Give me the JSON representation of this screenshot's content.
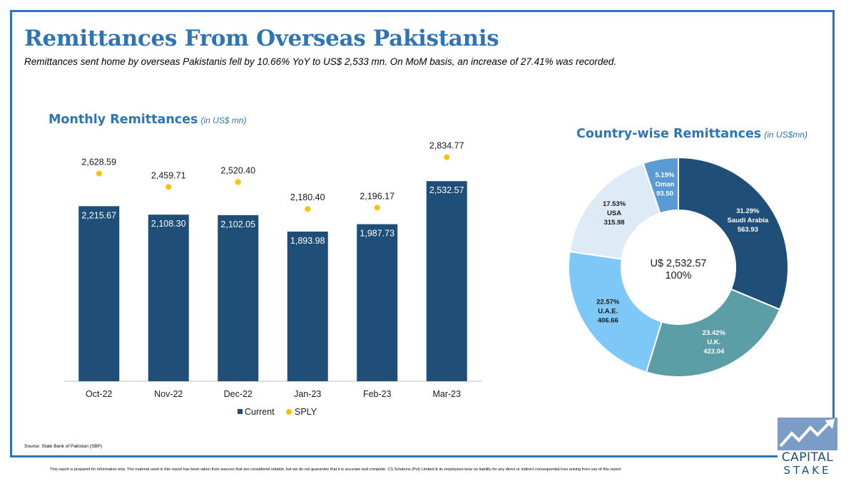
{
  "header": {
    "title": "Remittances From Overseas Pakistanis",
    "subtitle": "Remittances sent home by overseas Pakistanis fell by 10.66% YoY to US$ 2,533 mn. On MoM basis, an increase of 27.41% was recorded."
  },
  "colors": {
    "accent": "#2e75b6",
    "current": "#1f4e79",
    "sply": "#ffc000"
  },
  "chart_data": [
    {
      "type": "bar",
      "title": "Monthly Remittances",
      "title_unit": "(in US$ mn)",
      "categories": [
        "Oct-22",
        "Nov-22",
        "Dec-22",
        "Jan-23",
        "Feb-23",
        "Mar-23"
      ],
      "series": [
        {
          "name": "Current",
          "mark": "bar",
          "values": [
            2215.67,
            2108.3,
            2102.05,
            1893.98,
            1987.73,
            2532.57
          ],
          "labels": [
            "2,215.67",
            "2,108.30",
            "2,102.05",
            "1,893.98",
            "1,987.73",
            "2,532.57"
          ]
        },
        {
          "name": "SPLY",
          "mark": "point",
          "values": [
            2628.59,
            2459.71,
            2520.4,
            2180.4,
            2196.17,
            2834.77
          ],
          "labels": [
            "2,628.59",
            "2,459.71",
            "2,520.40",
            "2,180.40",
            "2,196.17",
            "2,834.77"
          ]
        }
      ],
      "ylim": [
        0,
        3400
      ],
      "grid": false,
      "legend": "bottom"
    },
    {
      "type": "pie",
      "title": "Country-wise Remittances",
      "title_unit": "(in US$mn)",
      "center_label": "U$ 2,532.57",
      "center_sublabel": "100%",
      "slices": [
        {
          "name": "Saudi Arabia",
          "percent_label": "31.29%",
          "value_label": "563.93",
          "value": 563.93,
          "color": "#1f4e79",
          "text_color": "#ffffff"
        },
        {
          "name": "U.K.",
          "percent_label": "23.42%",
          "value_label": "422.04",
          "value": 422.04,
          "color": "#5b9ea6",
          "text_color": "#ffffff"
        },
        {
          "name": "U.A.E.",
          "percent_label": "22.57%",
          "value_label": "406.66",
          "value": 406.66,
          "color": "#7dc8f7",
          "text_color": "#1a1a1a"
        },
        {
          "name": "USA",
          "percent_label": "17.53%",
          "value_label": "315.98",
          "value": 315.98,
          "color": "#deebf7",
          "text_color": "#1a1a1a"
        },
        {
          "name": "Oman",
          "percent_label": "5.19%",
          "value_label": "93.50",
          "value": 93.5,
          "color": "#5b9bd5",
          "text_color": "#ffffff"
        }
      ]
    }
  ],
  "footer": {
    "source": "Source: State Bank of Pakistan (SBP)",
    "disclaimer": "This report is prepared for information only. The material used in this report has been taken from sources that are considered reliable, but we do not guarantee that it is accurate and complete. CS Solutions (Pvt) Limited & its employees bear no liability for any direct or indirect consequential loss arising from use of this report."
  },
  "logo": {
    "line1": "CAPITAL",
    "line2": "STAKE"
  }
}
